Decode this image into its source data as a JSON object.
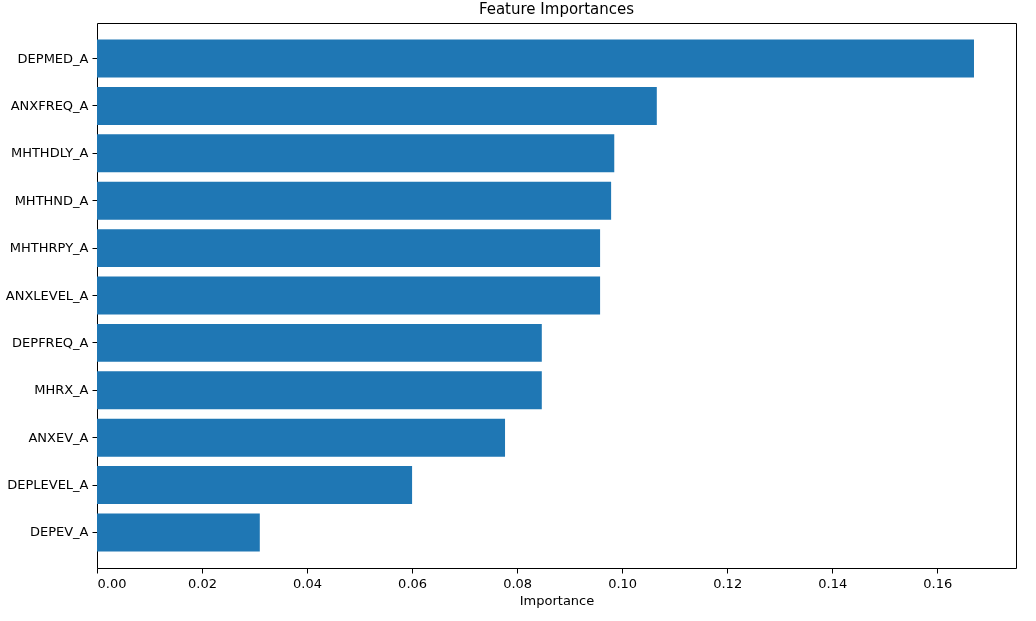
{
  "chart_data": {
    "type": "bar",
    "orientation": "horizontal",
    "title": "Feature Importances",
    "xlabel": "Importance",
    "categories": [
      "DEPMED_A",
      "ANXFREQ_A",
      "MHTHDLY_A",
      "MHTHND_A",
      "MHTHRPY_A",
      "ANXLEVEL_A",
      "DEPFREQ_A",
      "MHRX_A",
      "ANXEV_A",
      "DEPLEVEL_A",
      "DEPEV_A"
    ],
    "values": [
      0.167,
      0.1066,
      0.0985,
      0.0979,
      0.0958,
      0.0958,
      0.0847,
      0.0847,
      0.0777,
      0.06,
      0.031
    ],
    "color": "#1f77b4",
    "xlim": [
      0,
      0.175
    ],
    "xticks": [
      {
        "value": 0,
        "label": "0.00"
      },
      {
        "value": 0.02,
        "label": "0.02"
      },
      {
        "value": 0.04,
        "label": "0.04"
      },
      {
        "value": 0.06,
        "label": "0.06"
      },
      {
        "value": 0.08,
        "label": "0.08"
      },
      {
        "value": 0.1,
        "label": "0.10"
      },
      {
        "value": 0.12,
        "label": "0.12"
      },
      {
        "value": 0.14,
        "label": "0.14"
      },
      {
        "value": 0.16,
        "label": "0.16"
      }
    ]
  }
}
